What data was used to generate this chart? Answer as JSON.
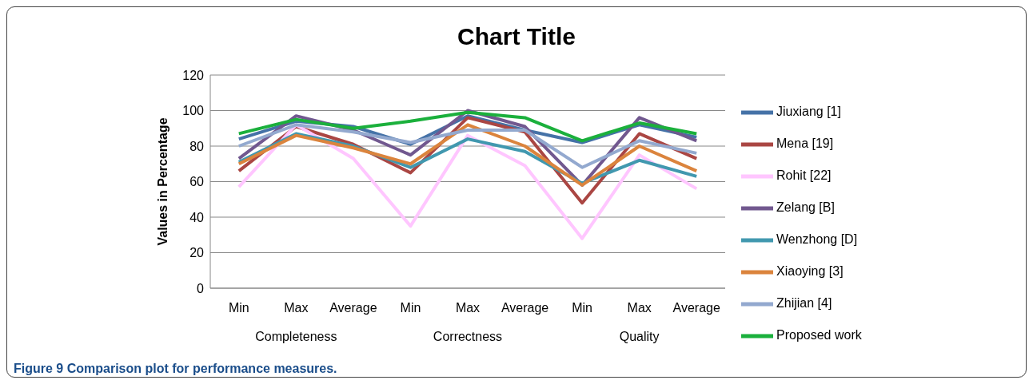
{
  "chart_data": {
    "type": "line",
    "title": "Chart Title",
    "ylabel": "Values in Percentage",
    "categories": [
      "Min",
      "Max",
      "Average",
      "Min",
      "Max",
      "Average",
      "Min",
      "Max",
      "Average"
    ],
    "series": [
      {
        "name": "Jiuxiang [1]",
        "color": "#4572a7",
        "values": [
          84,
          94,
          91,
          81,
          97,
          89,
          82,
          92,
          85
        ]
      },
      {
        "name": "Mena [19]",
        "color": "#aa4643",
        "values": [
          66,
          91,
          81,
          65,
          96,
          88,
          48,
          87,
          73
        ]
      },
      {
        "name": "Rohit [22]",
        "color": "#ffc6ff",
        "values": [
          57,
          92,
          73,
          35,
          86,
          69,
          28,
          75,
          56
        ]
      },
      {
        "name": "Zelang [B]",
        "color": "#71588f",
        "values": [
          73,
          97,
          89,
          75,
          100,
          91,
          58,
          96,
          83
        ]
      },
      {
        "name": "Wenzhong [D]",
        "color": "#4198af",
        "values": [
          71,
          87,
          80,
          68,
          84,
          77,
          59,
          72,
          63
        ]
      },
      {
        "name": "Xiaoying [3]",
        "color": "#db843d",
        "values": [
          70,
          86,
          79,
          70,
          92,
          80,
          58,
          80,
          66
        ]
      },
      {
        "name": "Zhijian [4]",
        "color": "#93a9cf",
        "values": [
          80,
          92,
          88,
          82,
          89,
          89,
          68,
          83,
          76
        ]
      },
      {
        "name": "Proposed work",
        "color": "#1bb03c",
        "values": [
          87,
          95,
          90,
          94,
          99,
          96,
          83,
          93,
          87
        ]
      }
    ],
    "ylim": [
      0,
      120
    ],
    "yticks": [
      0,
      20,
      40,
      60,
      80,
      100,
      120
    ],
    "grid": "y",
    "legend": "right",
    "marker": "none",
    "line_style": "solid",
    "annotations": [
      "Completeness",
      "Correctness",
      "Quality",
      "Figure 9 Comparison plot for performance measures."
    ]
  }
}
